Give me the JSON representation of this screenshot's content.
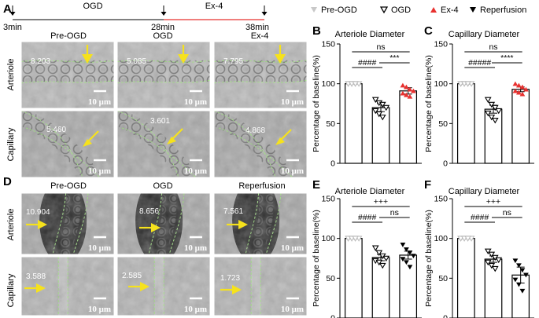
{
  "panel_letters": [
    "A",
    "B",
    "C",
    "D",
    "E",
    "F"
  ],
  "timeline": {
    "times": [
      "3min",
      "28min",
      "38min"
    ],
    "segments": [
      "OGD",
      "Ex-4"
    ],
    "colors": {
      "ogd": "#000000",
      "ex4": "#e8312f"
    }
  },
  "legend": [
    {
      "label": "Pre-OGD",
      "marker": "triangle-down-open",
      "color": "#c8c8c8"
    },
    {
      "label": "OGD",
      "marker": "triangle-down-open",
      "color": "#000000"
    },
    {
      "label": "Ex-4",
      "marker": "triangle-up",
      "color": "#e8312f"
    },
    {
      "label": "Reperfusion",
      "marker": "triangle-down",
      "color": "#000000"
    }
  ],
  "panelA": {
    "columns": [
      "Pre-OGD",
      "OGD\nEx-4"
    ],
    "col_titles": [
      "Pre-OGD",
      "OGD",
      "Ex-4"
    ],
    "row_labels": [
      "Arteriole",
      "Capillary"
    ],
    "arteriole_values": [
      "8.203",
      "5.085",
      "7.795"
    ],
    "capillary_values": [
      "5.460",
      "3.601",
      "4.868"
    ],
    "scale_label": "10 μm"
  },
  "panelD": {
    "col_titles": [
      "Pre-OGD",
      "OGD",
      "Reperfusion"
    ],
    "row_labels": [
      "Arteriole",
      "Capillary"
    ],
    "arteriole_values": [
      "10.904",
      "8.656",
      "7.561"
    ],
    "capillary_values": [
      "3.588",
      "2.585",
      "1.723"
    ],
    "scale_label": "10 μm"
  },
  "chart_data": [
    {
      "panel": "B",
      "type": "bar",
      "title": "Arteriole Diameter",
      "ylabel": "Percentage of baseline(%)",
      "ylim": [
        0,
        150
      ],
      "yticks": [
        0,
        50,
        100,
        150
      ],
      "categories": [
        "Pre-OGD",
        "OGD",
        "Ex-4"
      ],
      "values": [
        100,
        70,
        91
      ],
      "sem": [
        0,
        5,
        4
      ],
      "points": [
        [
          100,
          100,
          100,
          100,
          100,
          100,
          100
        ],
        [
          80,
          76,
          74,
          70,
          66,
          62,
          58
        ],
        [
          98,
          96,
          93,
          91,
          88,
          86,
          84
        ]
      ],
      "markers": [
        "triangle-down-open-grey",
        "triangle-down-open",
        "triangle-up-red"
      ],
      "significance": [
        {
          "from": 0,
          "to": 1,
          "label": "####"
        },
        {
          "from": 1,
          "to": 2,
          "label": "***"
        },
        {
          "from": 0,
          "to": 2,
          "label": "ns"
        }
      ]
    },
    {
      "panel": "C",
      "type": "bar",
      "title": "Capillary Diameter",
      "ylabel": "Percentage of baseline(%)",
      "ylim": [
        0,
        150
      ],
      "yticks": [
        0,
        50,
        100,
        150
      ],
      "categories": [
        "Pre-OGD",
        "OGD",
        "Ex-4"
      ],
      "values": [
        100,
        68,
        93
      ],
      "sem": [
        0,
        5,
        3
      ],
      "points": [
        [
          100,
          100,
          100,
          100,
          100,
          100,
          100
        ],
        [
          80,
          74,
          70,
          66,
          63,
          58,
          54
        ],
        [
          100,
          98,
          96,
          93,
          91,
          89,
          87
        ]
      ],
      "markers": [
        "triangle-down-open-grey",
        "triangle-down-open",
        "triangle-up-red"
      ],
      "significance": [
        {
          "from": 0,
          "to": 1,
          "label": "#####"
        },
        {
          "from": 1,
          "to": 2,
          "label": "****"
        },
        {
          "from": 0,
          "to": 2,
          "label": "ns"
        }
      ]
    },
    {
      "panel": "E",
      "type": "bar",
      "title": "Arteriole Diameter",
      "ylabel": "Percentage of baseline(%)",
      "ylim": [
        0,
        150
      ],
      "yticks": [
        0,
        50,
        100,
        150
      ],
      "categories": [
        "Pre-OGD",
        "OGD",
        "Reperfusion"
      ],
      "values": [
        100,
        76,
        79
      ],
      "sem": [
        0,
        4,
        5
      ],
      "points": [
        [
          100,
          100,
          100,
          100,
          100,
          100,
          100
        ],
        [
          88,
          82,
          78,
          75,
          72,
          70,
          66
        ],
        [
          92,
          86,
          82,
          78,
          74,
          70,
          64
        ]
      ],
      "markers": [
        "triangle-down-open-grey",
        "triangle-down-open",
        "triangle-down"
      ],
      "significance": [
        {
          "from": 0,
          "to": 1,
          "label": "####"
        },
        {
          "from": 1,
          "to": 2,
          "label": "ns"
        },
        {
          "from": 0,
          "to": 2,
          "label": "+++"
        }
      ]
    },
    {
      "panel": "F",
      "type": "bar",
      "title": "Capillary Diameter",
      "ylabel": "Percentage of baseline(%)",
      "ylim": [
        0,
        150
      ],
      "yticks": [
        0,
        50,
        100,
        150
      ],
      "categories": [
        "Pre-OGD",
        "OGD",
        "Reperfusion"
      ],
      "values": [
        100,
        74,
        54
      ],
      "sem": [
        0,
        4,
        10
      ],
      "points": [
        [
          100,
          100,
          100,
          100,
          100,
          100,
          100
        ],
        [
          84,
          80,
          76,
          73,
          70,
          66,
          62
        ],
        [
          72,
          66,
          60,
          54,
          48,
          42,
          34
        ]
      ],
      "markers": [
        "triangle-down-open-grey",
        "triangle-down-open",
        "triangle-down"
      ],
      "significance": [
        {
          "from": 0,
          "to": 1,
          "label": "####"
        },
        {
          "from": 1,
          "to": 2,
          "label": "ns"
        },
        {
          "from": 0,
          "to": 2,
          "label": "+++"
        }
      ]
    }
  ]
}
